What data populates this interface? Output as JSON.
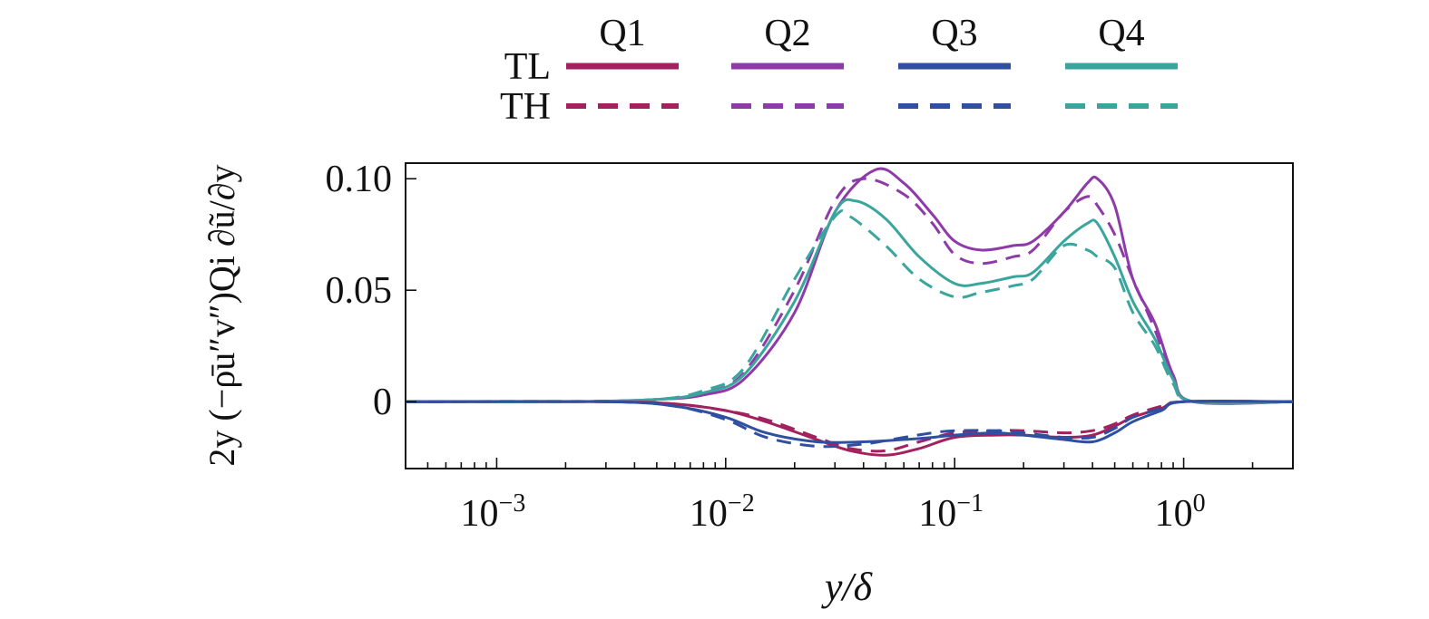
{
  "chart_data": {
    "type": "line",
    "x_scale": "log",
    "xlim": [
      0.0004,
      3
    ],
    "ylim": [
      -0.03,
      0.107
    ],
    "xlabel": "y/δ",
    "ylabel": "2y (−ρ̄u″v″)Qi ∂ũ/∂y",
    "x_ticks": [
      {
        "value": 0.001,
        "base": "10",
        "exp": "−3"
      },
      {
        "value": 0.01,
        "base": "10",
        "exp": "−2"
      },
      {
        "value": 0.1,
        "base": "10",
        "exp": "−1"
      },
      {
        "value": 1,
        "base": "10",
        "exp": "0"
      }
    ],
    "y_ticks": [
      {
        "value": 0,
        "label": "0"
      },
      {
        "value": 0.05,
        "label": "0.05"
      },
      {
        "value": 0.1,
        "label": "0.10"
      }
    ],
    "legend": {
      "placement": "top",
      "columns": [
        "Q1",
        "Q2",
        "Q3",
        "Q4"
      ],
      "rows": [
        "TL",
        "TH"
      ]
    },
    "colors": {
      "Q1": "#a3215e",
      "Q2": "#8e3aa8",
      "Q3": "#2f4fa0",
      "Q4": "#3aa59c"
    },
    "series": [
      {
        "quadrant": "Q2",
        "case": "TL",
        "x": [
          0.0004,
          0.002,
          0.005,
          0.008,
          0.012,
          0.02,
          0.03,
          0.045,
          0.06,
          0.08,
          0.1,
          0.13,
          0.18,
          0.22,
          0.3,
          0.38,
          0.42,
          0.5,
          0.6,
          0.75,
          0.9,
          1.1,
          3
        ],
        "y": [
          0,
          0,
          0.001,
          0.003,
          0.01,
          0.04,
          0.085,
          0.104,
          0.098,
          0.084,
          0.072,
          0.068,
          0.07,
          0.072,
          0.085,
          0.098,
          0.1,
          0.088,
          0.055,
          0.035,
          0.012,
          0,
          0
        ]
      },
      {
        "quadrant": "Q2",
        "case": "TH",
        "x": [
          0.0004,
          0.002,
          0.005,
          0.008,
          0.012,
          0.02,
          0.03,
          0.04,
          0.06,
          0.08,
          0.1,
          0.13,
          0.18,
          0.22,
          0.3,
          0.38,
          0.42,
          0.5,
          0.6,
          0.75,
          0.9,
          1.1,
          3
        ],
        "y": [
          0,
          0,
          0.001,
          0.004,
          0.013,
          0.05,
          0.09,
          0.1,
          0.093,
          0.08,
          0.066,
          0.062,
          0.065,
          0.068,
          0.085,
          0.092,
          0.088,
          0.075,
          0.055,
          0.032,
          0.01,
          0,
          0
        ]
      },
      {
        "quadrant": "Q4",
        "case": "TL",
        "x": [
          0.0004,
          0.002,
          0.005,
          0.008,
          0.012,
          0.02,
          0.03,
          0.037,
          0.05,
          0.07,
          0.1,
          0.13,
          0.18,
          0.22,
          0.3,
          0.38,
          0.42,
          0.5,
          0.6,
          0.75,
          0.9,
          1.1,
          3
        ],
        "y": [
          0,
          0,
          0.001,
          0.004,
          0.012,
          0.045,
          0.085,
          0.09,
          0.082,
          0.065,
          0.053,
          0.053,
          0.056,
          0.058,
          0.072,
          0.08,
          0.08,
          0.065,
          0.045,
          0.028,
          0.01,
          0,
          0
        ]
      },
      {
        "quadrant": "Q4",
        "case": "TH",
        "x": [
          0.0004,
          0.002,
          0.005,
          0.008,
          0.012,
          0.02,
          0.03,
          0.035,
          0.05,
          0.07,
          0.1,
          0.13,
          0.18,
          0.22,
          0.3,
          0.38,
          0.42,
          0.5,
          0.6,
          0.75,
          0.9,
          1.1,
          3
        ],
        "y": [
          0,
          0,
          0.001,
          0.005,
          0.015,
          0.055,
          0.083,
          0.083,
          0.07,
          0.055,
          0.047,
          0.049,
          0.052,
          0.055,
          0.07,
          0.068,
          0.065,
          0.06,
          0.04,
          0.025,
          0.008,
          0,
          0
        ]
      },
      {
        "quadrant": "Q1",
        "case": "TL",
        "x": [
          0.0004,
          0.003,
          0.006,
          0.01,
          0.015,
          0.025,
          0.035,
          0.05,
          0.07,
          0.1,
          0.15,
          0.2,
          0.3,
          0.4,
          0.5,
          0.6,
          0.8,
          1,
          3
        ],
        "y": [
          0,
          0,
          -0.001,
          -0.004,
          -0.009,
          -0.017,
          -0.022,
          -0.024,
          -0.021,
          -0.016,
          -0.015,
          -0.015,
          -0.016,
          -0.015,
          -0.011,
          -0.007,
          -0.003,
          0,
          0
        ]
      },
      {
        "quadrant": "Q1",
        "case": "TH",
        "x": [
          0.0004,
          0.003,
          0.006,
          0.01,
          0.015,
          0.025,
          0.035,
          0.05,
          0.07,
          0.1,
          0.15,
          0.2,
          0.3,
          0.4,
          0.5,
          0.6,
          0.8,
          1,
          3
        ],
        "y": [
          0,
          0,
          -0.001,
          -0.004,
          -0.008,
          -0.016,
          -0.021,
          -0.022,
          -0.018,
          -0.014,
          -0.013,
          -0.013,
          -0.014,
          -0.013,
          -0.01,
          -0.006,
          -0.002,
          0,
          0
        ]
      },
      {
        "quadrant": "Q3",
        "case": "TL",
        "x": [
          0.0004,
          0.003,
          0.006,
          0.01,
          0.015,
          0.025,
          0.04,
          0.06,
          0.08,
          0.1,
          0.15,
          0.2,
          0.3,
          0.4,
          0.5,
          0.6,
          0.8,
          1,
          3
        ],
        "y": [
          0,
          0,
          -0.002,
          -0.007,
          -0.014,
          -0.018,
          -0.018,
          -0.017,
          -0.016,
          -0.015,
          -0.014,
          -0.015,
          -0.017,
          -0.018,
          -0.014,
          -0.009,
          -0.004,
          0,
          0
        ]
      },
      {
        "quadrant": "Q3",
        "case": "TH",
        "x": [
          0.0004,
          0.003,
          0.006,
          0.01,
          0.015,
          0.025,
          0.04,
          0.06,
          0.08,
          0.1,
          0.15,
          0.2,
          0.3,
          0.4,
          0.5,
          0.6,
          0.8,
          1,
          3
        ],
        "y": [
          0,
          0,
          -0.002,
          -0.008,
          -0.016,
          -0.02,
          -0.019,
          -0.016,
          -0.014,
          -0.013,
          -0.013,
          -0.014,
          -0.016,
          -0.016,
          -0.012,
          -0.007,
          -0.003,
          0,
          0
        ]
      }
    ]
  }
}
